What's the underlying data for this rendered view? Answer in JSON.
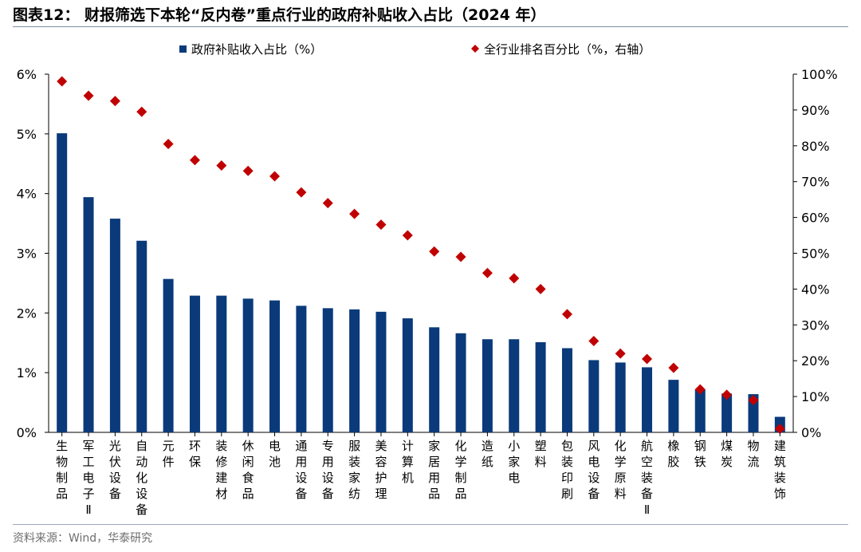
{
  "title": "图表12：  财报筛选下本轮“反内卷”重点行业的政府补贴收入占比（2024 年）",
  "source": "资料来源：Wind，华泰研究",
  "colors": {
    "bar": "#0a3a7a",
    "marker": "#c00000",
    "axis": "#000000",
    "rule": "#7f8fa6"
  },
  "chart_data": {
    "type": "bar",
    "categories": [
      "生物制品",
      "军工电子Ⅱ",
      "光伏设备",
      "自动化设备",
      "元件",
      "环保",
      "装修建材",
      "休闲食品",
      "电池",
      "通用设备",
      "专用设备",
      "服装家纺",
      "美容护理",
      "计算机",
      "家居用品",
      "化学制品",
      "造纸",
      "小家电",
      "塑料",
      "包装印刷",
      "风电设备",
      "化学原料",
      "航空装备Ⅱ",
      "橡胶",
      "钢铁",
      "煤炭",
      "物流",
      "建筑装饰"
    ],
    "series": [
      {
        "name": "政府补贴收入占比（%）",
        "type": "bar",
        "axis": "left",
        "values": [
          5.01,
          3.94,
          3.58,
          3.21,
          2.57,
          2.29,
          2.29,
          2.24,
          2.21,
          2.12,
          2.08,
          2.06,
          2.02,
          1.91,
          1.76,
          1.66,
          1.56,
          1.56,
          1.51,
          1.41,
          1.21,
          1.17,
          1.09,
          0.88,
          0.72,
          0.65,
          0.64,
          0.26
        ]
      },
      {
        "name": "全行业排名百分比（%，右轴）",
        "type": "scatter",
        "marker": "diamond",
        "axis": "right",
        "values": [
          98,
          94,
          92.5,
          89.5,
          80.5,
          76,
          74.5,
          73,
          71.5,
          67,
          64,
          61,
          58,
          55,
          50.5,
          49,
          44.5,
          43,
          40,
          33,
          25.5,
          22,
          20.5,
          18,
          12,
          10.5,
          9,
          1
        ]
      }
    ],
    "y_left": {
      "ticks": [
        "0%",
        "1%",
        "2%",
        "3%",
        "4%",
        "5%",
        "6%"
      ],
      "ylim": [
        0,
        6
      ]
    },
    "y_right": {
      "ticks": [
        "0%",
        "10%",
        "20%",
        "30%",
        "40%",
        "50%",
        "60%",
        "70%",
        "80%",
        "90%",
        "100%"
      ],
      "ylim": [
        0,
        100
      ]
    },
    "legend": {
      "placement": "top-center"
    },
    "grid": false
  }
}
